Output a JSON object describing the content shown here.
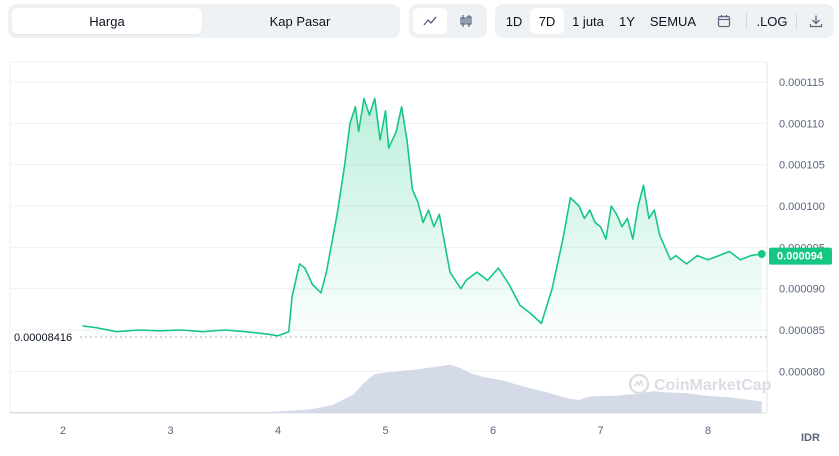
{
  "tabs": {
    "price_label": "Harga",
    "mcap_label": "Kap Pasar"
  },
  "chart_type_buttons": {
    "line_icon": "line-chart-icon",
    "candle_icon": "candlestick-icon"
  },
  "ranges": {
    "d1": "1D",
    "d7": "7D",
    "one_m": "1 juta",
    "y1": "1Y",
    "all": "SEMUA",
    "log": ".LOG"
  },
  "icons": {
    "calendar": "calendar-icon",
    "download": "download-icon"
  },
  "colors": {
    "line": "#16c784",
    "fill_top": "#16c784",
    "volume": "#cfd6e4",
    "badge": "#16c784"
  },
  "chart_data": {
    "type": "area",
    "x_ticks": [
      "2",
      "3",
      "4",
      "5",
      "6",
      "7",
      "8"
    ],
    "y_ticks": [
      "0.000080",
      "0.000085",
      "0.000090",
      "0.000095",
      "0.000100",
      "0.000105",
      "0.000110",
      "0.000115"
    ],
    "ylim": [
      7.75e-05,
      0.0001165
    ],
    "currency": "IDR",
    "open_label": "0.00008416",
    "open_value": 8.416e-05,
    "current_label": "0.000094",
    "current_value": 9.4e-05,
    "watermark": "CoinMarketCap",
    "price": {
      "x": [
        2.18,
        2.3,
        2.5,
        2.7,
        2.9,
        3.1,
        3.3,
        3.5,
        3.7,
        3.9,
        4.0,
        4.1,
        4.13,
        4.2,
        4.25,
        4.32,
        4.4,
        4.45,
        4.55,
        4.62,
        4.67,
        4.72,
        4.75,
        4.8,
        4.85,
        4.9,
        4.95,
        5.0,
        5.03,
        5.1,
        5.15,
        5.2,
        5.25,
        5.3,
        5.35,
        5.4,
        5.45,
        5.5,
        5.6,
        5.7,
        5.75,
        5.85,
        5.95,
        6.05,
        6.15,
        6.25,
        6.35,
        6.45,
        6.55,
        6.65,
        6.72,
        6.8,
        6.85,
        6.9,
        6.95,
        7.0,
        7.05,
        7.1,
        7.15,
        7.2,
        7.25,
        7.3,
        7.35,
        7.4,
        7.45,
        7.5,
        7.55,
        7.6,
        7.65,
        7.7,
        7.8,
        7.9,
        8.0,
        8.1,
        8.2,
        8.3,
        8.4,
        8.5
      ],
      "y": [
        8.55e-05,
        8.53e-05,
        8.48e-05,
        8.5e-05,
        8.49e-05,
        8.5e-05,
        8.48e-05,
        8.5e-05,
        8.48e-05,
        8.45e-05,
        8.43e-05,
        8.48e-05,
        8.9e-05,
        9.3e-05,
        9.25e-05,
        9.05e-05,
        8.95e-05,
        9.2e-05,
        9.9e-05,
        0.000105,
        0.00011,
        0.000112,
        0.000109,
        0.000113,
        0.000111,
        0.000113,
        0.000108,
        0.0001115,
        0.000107,
        0.000109,
        0.000112,
        0.000108,
        0.000102,
        0.0001005,
        9.8e-05,
        9.95e-05,
        9.75e-05,
        9.9e-05,
        9.2e-05,
        9e-05,
        9.1e-05,
        9.2e-05,
        9.1e-05,
        9.25e-05,
        9.05e-05,
        8.8e-05,
        8.7e-05,
        8.58e-05,
        9e-05,
        9.6e-05,
        0.000101,
        0.0001,
        9.85e-05,
        9.95e-05,
        9.8e-05,
        9.75e-05,
        9.6e-05,
        0.0001,
        9.9e-05,
        9.75e-05,
        9.85e-05,
        9.6e-05,
        0.0001,
        0.0001025,
        9.85e-05,
        9.95e-05,
        9.65e-05,
        9.5e-05,
        9.35e-05,
        9.4e-05,
        9.3e-05,
        9.4e-05,
        9.35e-05,
        9.4e-05,
        9.45e-05,
        9.35e-05,
        9.4e-05,
        9.42e-05
      ]
    },
    "volume_relative": {
      "x": [
        1.5,
        3.9,
        4.1,
        4.3,
        4.5,
        4.7,
        4.8,
        4.9,
        5.1,
        5.3,
        5.5,
        5.6,
        5.7,
        5.8,
        5.9,
        6.1,
        6.3,
        6.5,
        6.7,
        6.8,
        6.9,
        7.1,
        7.3,
        7.5,
        7.6,
        7.8,
        8.0,
        8.2,
        8.4,
        8.5
      ],
      "y": [
        0.02,
        0.02,
        0.04,
        0.07,
        0.15,
        0.35,
        0.58,
        0.75,
        0.8,
        0.84,
        0.9,
        0.93,
        0.86,
        0.76,
        0.7,
        0.62,
        0.5,
        0.4,
        0.28,
        0.25,
        0.32,
        0.33,
        0.36,
        0.42,
        0.4,
        0.38,
        0.33,
        0.3,
        0.25,
        0.22
      ]
    }
  }
}
